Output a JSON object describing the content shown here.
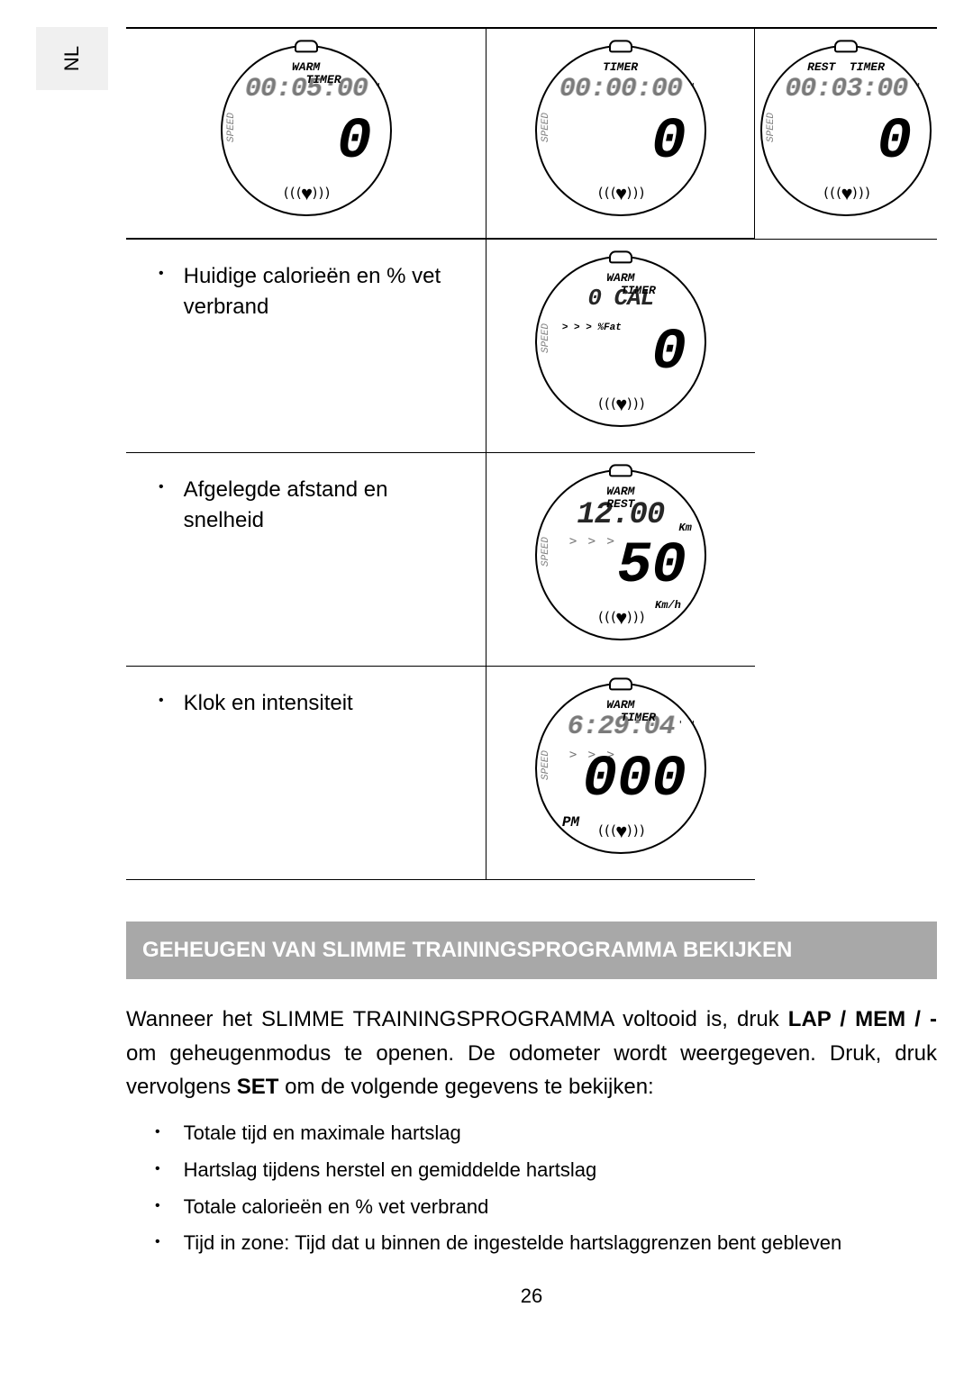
{
  "side_tab": "NL",
  "top_row": [
    {
      "labels_top": "WARM\n     TIMER",
      "big_time": "00:05:00",
      "center_num": "0",
      "dim": true,
      "tick": "\""
    },
    {
      "labels_top": "TIMER",
      "big_time": "00:00:00",
      "center_num": "0",
      "dim": true,
      "tick": "\""
    },
    {
      "labels_top": "REST  TIMER",
      "big_time": "00:03:00",
      "center_num": "0",
      "dim": true,
      "tick": "\""
    }
  ],
  "rows": [
    {
      "text": "Huidige calorieën en % vet verbrand",
      "watch": {
        "labels_top": "WARM\n     TIMER",
        "big_time": "0 CAL",
        "big_time_size": 26,
        "sub_label": "> > >  %Fat",
        "center_num": "0",
        "dim": false
      }
    },
    {
      "text": "Afgelegde afstand en snelheid",
      "watch": {
        "labels_top": "WARM\nREST",
        "big_time": "12.00",
        "big_time_size": 34,
        "unit": "Km",
        "arrows": "> > >",
        "center_num": "50",
        "unit2": "Km/h",
        "dim": false
      }
    },
    {
      "text": "Klok en intensiteit",
      "watch": {
        "labels_top": "WARM\n     TIMER",
        "big_time": "6:29:04",
        "big_time_size": 30,
        "arrows": "> > >",
        "center_num": "000",
        "pm": "PM",
        "tick": "' \"",
        "dim": true
      }
    }
  ],
  "section_header": "GEHEUGEN VAN SLIMME TRAININGSPROGRAMMA BEKIJKEN",
  "paragraph": {
    "t1": "Wanneer het SLIMME TRAININGSPROGRAMMA voltooid is, druk ",
    "b1": "LAP / MEM / -",
    "t2": " om geheugenmodus te openen. De odometer wordt weergegeven. Druk, druk vervolgens ",
    "b2": "SET",
    "t3": " om de volgende gegevens te bekijken:"
  },
  "list2": [
    "Totale tijd en maximale hartslag",
    "Hartslag tijdens herstel en gemiddelde hartslag",
    "Totale calorieën en % vet verbrand",
    "Tijd in zone: Tijd dat u binnen de ingestelde hartslaggrenzen bent gebleven"
  ],
  "page_num": "26"
}
